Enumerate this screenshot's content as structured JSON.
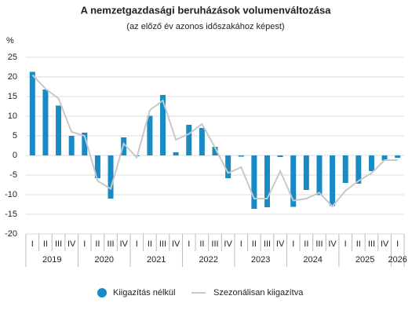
{
  "chart_data": {
    "type": "bar_line",
    "title": "A nemzetgazdasági beruházások volumenváltozása",
    "subtitle": "(az előző év azonos időszakához képest)",
    "y_unit": "%",
    "categories": [
      "I",
      "II",
      "III",
      "IV",
      "I",
      "II",
      "III",
      "IV",
      "I",
      "II",
      "III",
      "IV",
      "I",
      "II",
      "III",
      "IV",
      "I",
      "II",
      "III",
      "IV",
      "I",
      "II",
      "III",
      "IV",
      "I",
      "II",
      "III",
      "IV",
      "I"
    ],
    "years": [
      "2019",
      "2020",
      "2021",
      "2022",
      "2023",
      "2024",
      "2025",
      "2026"
    ],
    "series": [
      {
        "name": "Kiigazítás nélkül",
        "type": "bar",
        "color": "#1a8ac6",
        "values": [
          21.3,
          16.8,
          12.7,
          5.0,
          5.8,
          -5.8,
          -11.0,
          4.6,
          -0.2,
          10.1,
          15.4,
          0.8,
          7.8,
          7.0,
          2.2,
          -5.8,
          -0.3,
          -13.6,
          -13.2,
          -0.4,
          -13.1,
          -8.8,
          -10.1,
          -12.9,
          -7.0,
          -7.2,
          -4.0,
          -1.3,
          -0.6
        ]
      },
      {
        "name": "Szezonálisan kiigazítva",
        "type": "line",
        "color": "#c8c8c8",
        "values": [
          20.5,
          17.0,
          14.5,
          6.0,
          5.0,
          -6.5,
          -8.5,
          3.0,
          -0.5,
          11.5,
          14.0,
          4.0,
          5.5,
          8.0,
          2.0,
          -4.5,
          -3.0,
          -11.0,
          -11.0,
          -4.0,
          -11.5,
          -11.0,
          -9.5,
          -13.0,
          -9.0,
          -6.5,
          -4.5,
          -1.2,
          -1.2
        ]
      }
    ],
    "ylim": [
      -20,
      25
    ],
    "yticks": [
      -20,
      -15,
      -10,
      -5,
      0,
      5,
      10,
      15,
      20,
      25
    ],
    "grid": true,
    "legend": "bottom"
  }
}
